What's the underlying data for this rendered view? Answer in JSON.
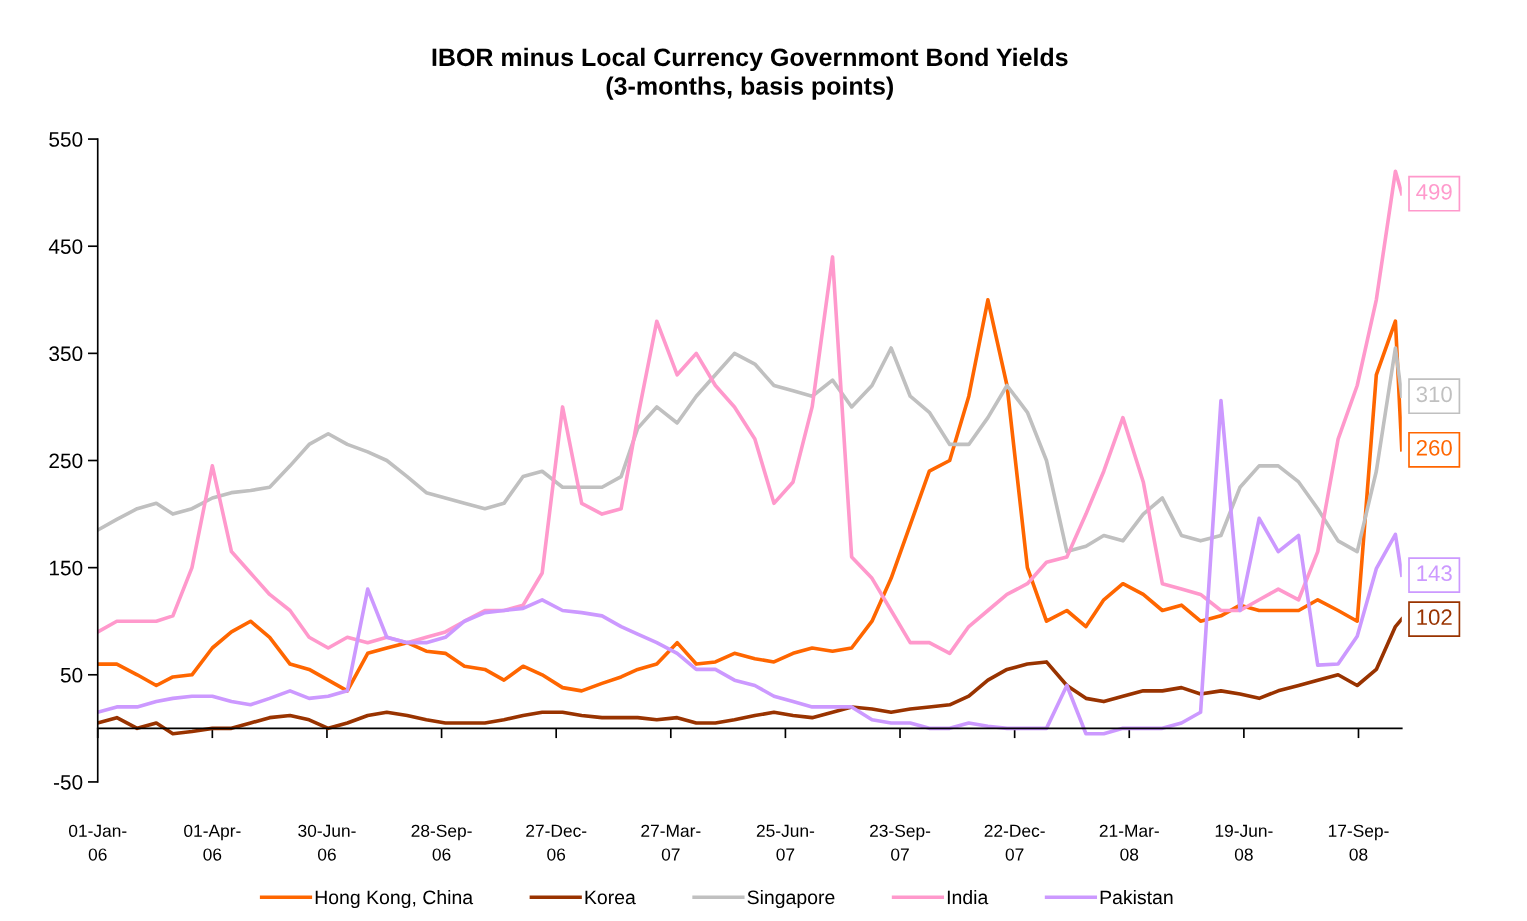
{
  "chart_data": {
    "type": "line",
    "title": "IBOR minus Local Currency Governmont Bond Yields\n(3-months, basis points)",
    "x": [
      "2006-01-01",
      "2006-01-16",
      "2006-02-01",
      "2006-02-16",
      "2006-03-01",
      "2006-03-16",
      "2006-04-01",
      "2006-04-16",
      "2006-05-01",
      "2006-05-16",
      "2006-06-01",
      "2006-06-16",
      "2006-07-01",
      "2006-07-16",
      "2006-08-01",
      "2006-08-16",
      "2006-09-01",
      "2006-09-16",
      "2006-10-01",
      "2006-10-16",
      "2006-11-01",
      "2006-11-16",
      "2006-12-01",
      "2006-12-16",
      "2007-01-01",
      "2007-01-16",
      "2007-02-01",
      "2007-02-16",
      "2007-03-01",
      "2007-03-16",
      "2007-04-01",
      "2007-04-16",
      "2007-05-01",
      "2007-05-16",
      "2007-06-01",
      "2007-06-16",
      "2007-07-01",
      "2007-07-16",
      "2007-08-01",
      "2007-08-16",
      "2007-09-01",
      "2007-09-16",
      "2007-10-01",
      "2007-10-16",
      "2007-11-01",
      "2007-11-16",
      "2007-12-01",
      "2007-12-16",
      "2008-01-01",
      "2008-01-16",
      "2008-02-01",
      "2008-02-16",
      "2008-03-01",
      "2008-03-16",
      "2008-04-01",
      "2008-04-16",
      "2008-05-01",
      "2008-05-16",
      "2008-06-01",
      "2008-06-16",
      "2008-07-01",
      "2008-07-16",
      "2008-08-01",
      "2008-08-16",
      "2008-09-01",
      "2008-09-16",
      "2008-10-01",
      "2008-10-16",
      "2008-10-21"
    ],
    "series": [
      {
        "name": "Hong Kong, China",
        "color": "#ff6600",
        "values": [
          60,
          60,
          50,
          40,
          48,
          50,
          75,
          90,
          100,
          85,
          60,
          55,
          45,
          35,
          70,
          75,
          80,
          72,
          70,
          58,
          55,
          45,
          58,
          50,
          38,
          35,
          42,
          48,
          55,
          60,
          80,
          60,
          62,
          70,
          65,
          62,
          70,
          75,
          72,
          75,
          100,
          140,
          190,
          240,
          250,
          310,
          400,
          320,
          150,
          100,
          110,
          95,
          120,
          135,
          125,
          110,
          115,
          100,
          105,
          115,
          110,
          110,
          110,
          120,
          110,
          100,
          330,
          380,
          260
        ]
      },
      {
        "name": "Korea",
        "color": "#993300",
        "values": [
          5,
          10,
          0,
          5,
          -5,
          -3,
          0,
          0,
          5,
          10,
          12,
          8,
          0,
          5,
          12,
          15,
          12,
          8,
          5,
          5,
          5,
          8,
          12,
          15,
          15,
          12,
          10,
          10,
          10,
          8,
          10,
          5,
          5,
          8,
          12,
          15,
          12,
          10,
          15,
          20,
          18,
          15,
          18,
          20,
          22,
          30,
          45,
          55,
          60,
          62,
          40,
          28,
          25,
          30,
          35,
          35,
          38,
          32,
          35,
          32,
          28,
          35,
          40,
          45,
          50,
          40,
          55,
          95,
          102
        ]
      },
      {
        "name": "Singapore",
        "color": "#c0c0c0",
        "values": [
          185,
          195,
          205,
          210,
          200,
          205,
          215,
          220,
          222,
          225,
          245,
          265,
          275,
          265,
          258,
          250,
          235,
          220,
          215,
          210,
          205,
          210,
          235,
          240,
          225,
          225,
          225,
          235,
          280,
          300,
          285,
          310,
          330,
          350,
          340,
          320,
          315,
          310,
          325,
          300,
          320,
          355,
          310,
          295,
          265,
          265,
          290,
          320,
          295,
          250,
          165,
          170,
          180,
          175,
          200,
          215,
          180,
          175,
          180,
          225,
          245,
          245,
          230,
          205,
          175,
          165,
          240,
          355,
          310
        ]
      },
      {
        "name": "India",
        "color": "#ff99cc",
        "values": [
          90,
          100,
          100,
          100,
          105,
          150,
          245,
          165,
          145,
          125,
          110,
          85,
          75,
          85,
          80,
          85,
          80,
          85,
          90,
          100,
          110,
          110,
          115,
          145,
          300,
          210,
          200,
          205,
          290,
          380,
          330,
          350,
          320,
          300,
          270,
          210,
          230,
          300,
          440,
          160,
          140,
          110,
          80,
          80,
          70,
          95,
          110,
          125,
          135,
          155,
          160,
          200,
          240,
          290,
          230,
          135,
          130,
          125,
          110,
          110,
          120,
          130,
          120,
          165,
          270,
          320,
          400,
          520,
          499
        ]
      },
      {
        "name": "Pakistan",
        "color": "#cc99ff",
        "values": [
          15,
          20,
          20,
          25,
          28,
          30,
          30,
          25,
          22,
          28,
          35,
          28,
          30,
          35,
          130,
          85,
          80,
          80,
          85,
          100,
          108,
          110,
          112,
          120,
          110,
          108,
          105,
          95,
          88,
          80,
          70,
          55,
          55,
          45,
          40,
          30,
          25,
          20,
          20,
          20,
          8,
          5,
          5,
          0,
          0,
          5,
          2,
          0,
          0,
          0,
          40,
          -5,
          -5,
          0,
          0,
          0,
          5,
          15,
          306,
          110,
          196,
          165,
          180,
          59,
          60,
          86,
          149,
          181,
          143
        ]
      }
    ],
    "xlim": [
      "2006-01-01",
      "2008-10-21"
    ],
    "xticks": [
      {
        "value": "2006-01-01",
        "label": "01-Jan-\n06"
      },
      {
        "value": "2006-04-01",
        "label": "01-Apr-\n06"
      },
      {
        "value": "2006-06-30",
        "label": "30-Jun-\n06"
      },
      {
        "value": "2006-09-28",
        "label": "28-Sep-\n06"
      },
      {
        "value": "2006-12-27",
        "label": "27-Dec-\n06"
      },
      {
        "value": "2007-03-27",
        "label": "27-Mar-\n07"
      },
      {
        "value": "2007-06-25",
        "label": "25-Jun-\n07"
      },
      {
        "value": "2007-09-23",
        "label": "23-Sep-\n07"
      },
      {
        "value": "2007-12-22",
        "label": "22-Dec-\n07"
      },
      {
        "value": "2008-03-21",
        "label": "21-Mar-\n08"
      },
      {
        "value": "2008-06-19",
        "label": "19-Jun-\n08"
      },
      {
        "value": "2008-09-17",
        "label": "17-Sep-\n08"
      }
    ],
    "ylim": [
      -50,
      550
    ],
    "yticks": [
      -50,
      50,
      150,
      250,
      350,
      450,
      550
    ],
    "annotations": [
      {
        "text": "499",
        "x": "2008-10-21",
        "y": 499
      },
      {
        "text": "310",
        "x": "2008-10-21",
        "y": 310
      },
      {
        "text": "260",
        "x": "2008-10-21",
        "y": 260
      },
      {
        "text": "143",
        "x": "2008-10-21",
        "y": 143
      },
      {
        "text": "102",
        "x": "2008-10-21",
        "y": 102
      }
    ],
    "grid": false,
    "legend": "bottom",
    "marker": "none",
    "line_style": "solid"
  }
}
